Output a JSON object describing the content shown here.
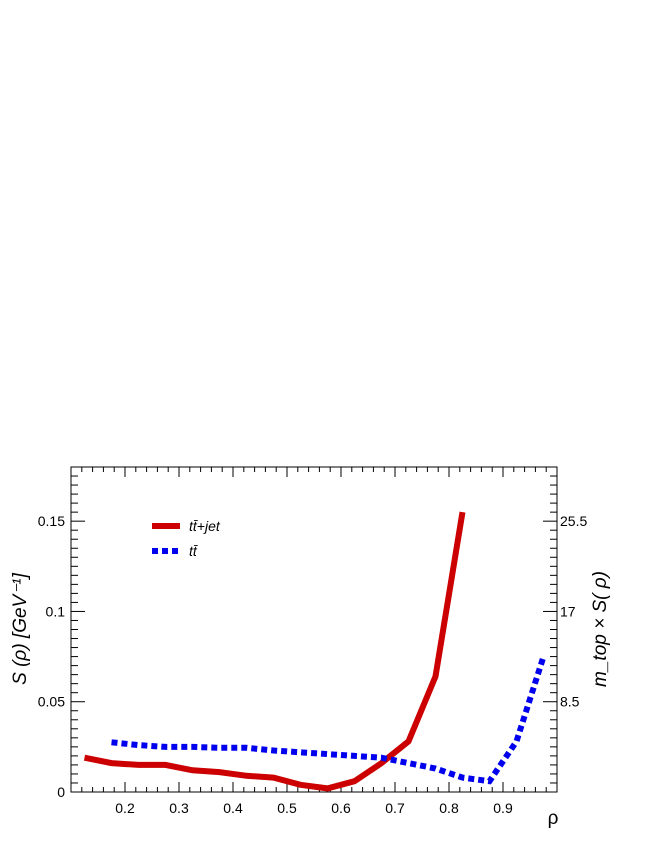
{
  "chart_data": {
    "type": "line",
    "xlabel": "ρ",
    "ylabel": "S (ρ) [GeV⁻¹]",
    "y2label": "m_top × S( ρ)",
    "xlim": [
      0.1,
      1.0
    ],
    "ylim": [
      0,
      0.18
    ],
    "x_ticks": [
      0.2,
      0.3,
      0.4,
      0.5,
      0.6,
      0.7,
      0.8,
      0.9
    ],
    "x_tick_labels": [
      "0.2",
      "0.3",
      "0.4",
      "0.5",
      "0.6",
      "0.7",
      "0.8",
      "0.9"
    ],
    "y_ticks": [
      0,
      0.05,
      0.1,
      0.15
    ],
    "y_tick_labels": [
      "0",
      "0.05",
      "0.1",
      "0.15"
    ],
    "y2_ticks": [
      8.5,
      17,
      25.5
    ],
    "y2_tick_labels": [
      "8.5",
      "17",
      "25.5"
    ],
    "y2_scale": 170,
    "legend_placement": "top-left",
    "grid": false,
    "series": [
      {
        "name": "tt̄+jet",
        "color": "#cc0000",
        "style": "solid",
        "x": [
          0.125,
          0.175,
          0.225,
          0.275,
          0.325,
          0.375,
          0.425,
          0.475,
          0.525,
          0.575,
          0.625,
          0.675,
          0.725,
          0.775,
          0.825
        ],
        "y": [
          0.019,
          0.016,
          0.015,
          0.015,
          0.012,
          0.011,
          0.009,
          0.008,
          0.004,
          0.002,
          0.006,
          0.016,
          0.028,
          0.064,
          0.155
        ]
      },
      {
        "name": "tt̄",
        "color": "#0000ee",
        "style": "dashed",
        "x": [
          0.175,
          0.225,
          0.275,
          0.325,
          0.375,
          0.425,
          0.475,
          0.525,
          0.575,
          0.625,
          0.675,
          0.725,
          0.775,
          0.825,
          0.875,
          0.925,
          0.975
        ],
        "y": [
          0.0275,
          0.026,
          0.025,
          0.025,
          0.0245,
          0.0245,
          0.023,
          0.022,
          0.021,
          0.02,
          0.019,
          0.016,
          0.013,
          0.008,
          0.006,
          0.028,
          0.075
        ]
      }
    ]
  }
}
